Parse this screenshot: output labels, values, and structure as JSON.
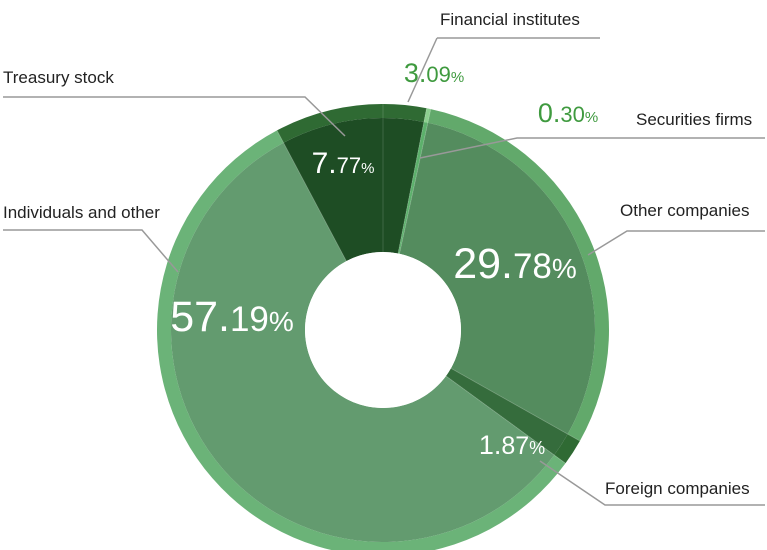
{
  "chart_data": {
    "type": "pie",
    "style": "donut",
    "categories": [
      "Financial institutes",
      "Securities firms",
      "Other companies",
      "Foreign companies",
      "Individuals and other",
      "Treasury stock"
    ],
    "values": [
      3.09,
      0.3,
      29.78,
      1.87,
      57.19,
      7.77
    ],
    "value_labels": [
      {
        "int": "3.",
        "frac": "09",
        "pct": "%"
      },
      {
        "int": "0.",
        "frac": "30",
        "pct": "%"
      },
      {
        "int": "29.",
        "frac": "78",
        "pct": "%"
      },
      {
        "int": "1.",
        "frac": "87",
        "pct": "%"
      },
      {
        "int": "57.",
        "frac": "19",
        "pct": "%"
      },
      {
        "int": "7.",
        "frac": "77",
        "pct": "%"
      }
    ],
    "colors": {
      "inner": [
        "#1e4d24",
        "#5cb06b",
        "#548c5e",
        "#356c3c",
        "#639b6f",
        "#1e4d24"
      ],
      "outer": [
        "#2f6a33",
        "#8ccf8f",
        "#62a96b",
        "#2f6a33",
        "#6bb378",
        "#2f6a33"
      ],
      "outside_value_text": "#3f9a3f",
      "inside_value_text": "#ffffff",
      "leader_line": "#999999",
      "label_text": "#222222"
    }
  }
}
